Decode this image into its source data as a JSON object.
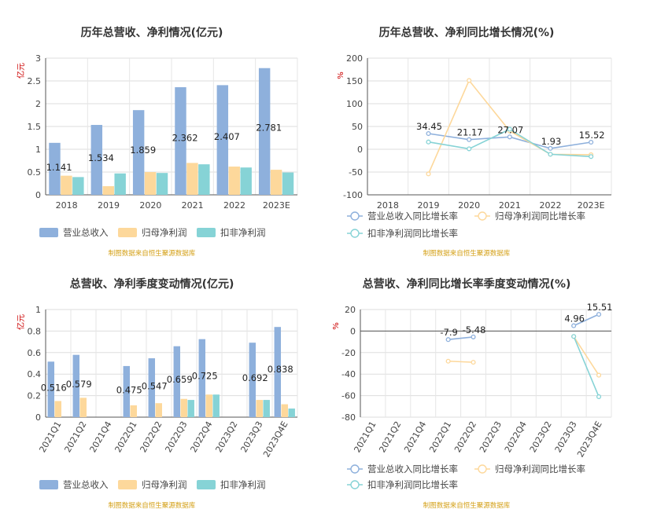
{
  "colors": {
    "revenue": "#8eb0dc",
    "net_profit": "#fdd89b",
    "deducted": "#86d3d6",
    "source": "#d4a017",
    "unit": "#cc0000"
  },
  "source_note": "制图数据来自恒生聚源数据库",
  "legend_labels": {
    "bars": [
      "营业总收入",
      "归母净利润",
      "扣非净利润"
    ],
    "lines": [
      "营业总收入同比增长率",
      "归母净利润同比增长率",
      "扣非净利润同比增长率"
    ]
  },
  "chart_data": [
    {
      "id": "annual_bar",
      "type": "bar",
      "title": "历年总营收、净利情况(亿元)",
      "ylabel": "亿元",
      "ylim": [
        0,
        3
      ],
      "yticks": [
        0,
        0.5,
        1,
        1.5,
        2,
        2.5,
        3
      ],
      "categories": [
        "2018",
        "2019",
        "2020",
        "2021",
        "2022",
        "2023E"
      ],
      "series": [
        {
          "name": "营业总收入",
          "values": [
            1.141,
            1.534,
            1.859,
            2.362,
            2.407,
            2.781
          ]
        },
        {
          "name": "归母净利润",
          "values": [
            0.42,
            0.19,
            0.5,
            0.7,
            0.62,
            0.55
          ]
        },
        {
          "name": "扣非净利润",
          "values": [
            0.39,
            0.47,
            0.48,
            0.67,
            0.6,
            0.49
          ]
        }
      ],
      "data_labels": [
        "1.141",
        "1.534",
        "1.859",
        "2.362",
        "2.407",
        "2.781"
      ],
      "grid": true,
      "legend": "bottom-left"
    },
    {
      "id": "annual_growth",
      "type": "line",
      "title": "历年总营收、净利同比增长情况(%)",
      "ylabel": "%",
      "ylim": [
        -100,
        200
      ],
      "yticks": [
        -100,
        -50,
        0,
        50,
        100,
        150,
        200
      ],
      "categories": [
        "2018",
        "2019",
        "2020",
        "2021",
        "2022",
        "2023E"
      ],
      "series": [
        {
          "name": "营业总收入同比增长率",
          "values": [
            null,
            34.45,
            21.17,
            27.07,
            1.93,
            15.52
          ]
        },
        {
          "name": "归母净利润同比增长率",
          "values": [
            null,
            -54,
            151,
            40,
            -11,
            -12
          ]
        },
        {
          "name": "扣非净利润同比增长率",
          "values": [
            null,
            16,
            1,
            44,
            -11,
            -16
          ]
        }
      ],
      "data_labels": [
        "",
        "34.45",
        "21.17",
        "27.07",
        "1.93",
        "15.52"
      ],
      "grid": true,
      "legend": "bottom-left"
    },
    {
      "id": "quarterly_bar",
      "type": "bar",
      "title": "总营收、净利季度变动情况(亿元)",
      "ylabel": "亿元",
      "ylim": [
        0,
        1
      ],
      "yticks": [
        0,
        0.2,
        0.4,
        0.6,
        0.8,
        1
      ],
      "categories": [
        "2021Q1",
        "2021Q2",
        "2021Q4",
        "2022Q1",
        "2022Q2",
        "2022Q3",
        "2022Q4",
        "2023Q2",
        "2023Q3",
        "2023Q4E"
      ],
      "series": [
        {
          "name": "营业总收入",
          "values": [
            0.516,
            0.579,
            null,
            0.475,
            0.547,
            0.659,
            0.725,
            null,
            0.692,
            0.838
          ]
        },
        {
          "name": "归母净利润",
          "values": [
            0.15,
            0.18,
            null,
            0.11,
            0.13,
            0.17,
            0.21,
            null,
            0.16,
            0.12
          ]
        },
        {
          "name": "扣非净利润",
          "values": [
            null,
            null,
            null,
            null,
            null,
            0.16,
            0.21,
            null,
            0.16,
            0.08
          ]
        }
      ],
      "data_labels": [
        "0.516",
        "0.579",
        "",
        "0.475",
        "0.547",
        "0.659",
        "0.725",
        "",
        "0.692",
        "0.838"
      ],
      "grid": true,
      "legend": "bottom-left"
    },
    {
      "id": "quarterly_growth",
      "type": "line",
      "title": "总营收、净利同比增长率季度变动情况(%)",
      "ylabel": "%",
      "ylim": [
        -80,
        20
      ],
      "yticks": [
        -80,
        -60,
        -40,
        -20,
        0,
        20
      ],
      "categories": [
        "2021Q1",
        "2021Q2",
        "2021Q4",
        "2022Q1",
        "2022Q2",
        "2022Q3",
        "2022Q4",
        "2023Q2",
        "2023Q3",
        "2023Q4E"
      ],
      "series": [
        {
          "name": "营业总收入同比增长率",
          "values": [
            null,
            null,
            null,
            -7.9,
            -5.48,
            null,
            null,
            null,
            4.96,
            15.51
          ]
        },
        {
          "name": "归母净利润同比增长率",
          "values": [
            null,
            null,
            null,
            -28,
            -29,
            null,
            null,
            null,
            -5,
            -41
          ]
        },
        {
          "name": "扣非净利润同比增长率",
          "values": [
            null,
            null,
            null,
            null,
            null,
            null,
            null,
            null,
            -5,
            -61
          ]
        }
      ],
      "data_labels": [
        "",
        "",
        "",
        "-7.9",
        "-5.48",
        "",
        "",
        "",
        "4.96",
        "15.51"
      ],
      "grid": true,
      "legend": "bottom-left"
    }
  ]
}
